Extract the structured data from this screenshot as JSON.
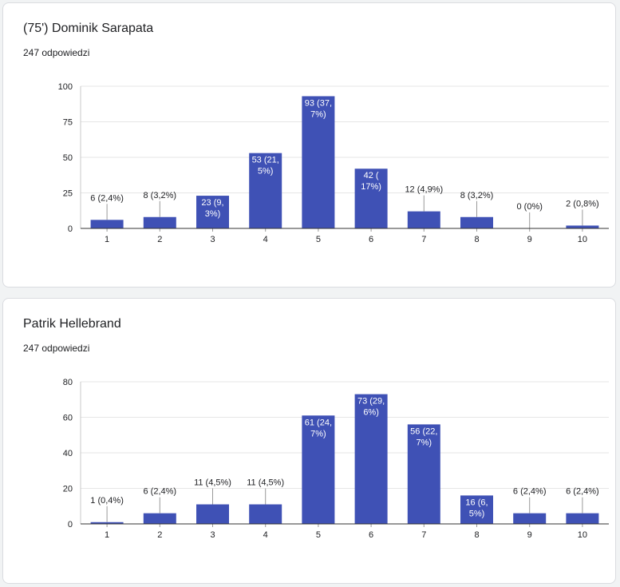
{
  "style": {
    "bar_color": "#3f51b5",
    "grid_color": "#e6e6e6",
    "axis_color": "#333333",
    "text_color": "#202124"
  },
  "chart_data": [
    {
      "type": "bar",
      "title": "(75') Dominik Sarapata",
      "subtitle": "247 odpowiedzi",
      "categories": [
        "1",
        "2",
        "3",
        "4",
        "5",
        "6",
        "7",
        "8",
        "9",
        "10"
      ],
      "values": [
        6,
        8,
        23,
        53,
        93,
        42,
        12,
        8,
        0,
        2
      ],
      "data_labels": [
        [
          "6 (2,4%)"
        ],
        [
          "8 (3,2%)"
        ],
        [
          "23 (9,",
          "3%)"
        ],
        [
          "53 (21,",
          "5%)"
        ],
        [
          "93 (37,",
          "7%)"
        ],
        [
          "42 (",
          "17%)"
        ],
        [
          "12 (4,9%)"
        ],
        [
          "8 (3,2%)"
        ],
        [
          "0 (0%)"
        ],
        [
          "2 (0,8%)"
        ]
      ],
      "ylim": [
        0,
        100
      ],
      "yticks": [
        "0",
        "25",
        "50",
        "75",
        "100"
      ],
      "grid": true
    },
    {
      "type": "bar",
      "title": "Patrik Hellebrand",
      "subtitle": "247 odpowiedzi",
      "categories": [
        "1",
        "2",
        "3",
        "4",
        "5",
        "6",
        "7",
        "8",
        "9",
        "10"
      ],
      "values": [
        1,
        6,
        11,
        11,
        61,
        73,
        56,
        16,
        6,
        6
      ],
      "data_labels": [
        [
          "1 (0,4%)"
        ],
        [
          "6 (2,4%)"
        ],
        [
          "11 (4,5%)"
        ],
        [
          "11 (4,5%)"
        ],
        [
          "61 (24,",
          "7%)"
        ],
        [
          "73 (29,",
          "6%)"
        ],
        [
          "56 (22,",
          "7%)"
        ],
        [
          "16 (6,",
          "5%)"
        ],
        [
          "6 (2,4%)"
        ],
        [
          "6 (2,4%)"
        ]
      ],
      "ylim": [
        0,
        80
      ],
      "yticks": [
        "0",
        "20",
        "40",
        "60",
        "80"
      ],
      "grid": true
    }
  ]
}
